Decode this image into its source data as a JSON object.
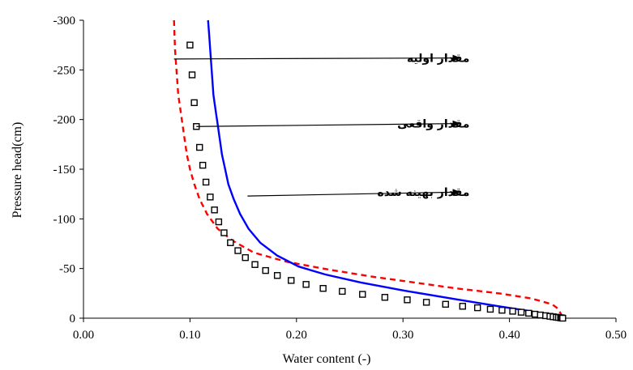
{
  "chart_data": {
    "type": "line",
    "xlabel": "Water content (-)",
    "ylabel": "Pressure head(cm)",
    "xlim": [
      0,
      0.5
    ],
    "ylim": [
      0,
      -300
    ],
    "x_ticks": [
      "0.00",
      "0.10",
      "0.20",
      "0.30",
      "0.40",
      "0.50"
    ],
    "y_ticks": [
      "0",
      "-50",
      "-100",
      "-150",
      "-200",
      "-250",
      "-300"
    ],
    "grid": false,
    "legend": "none",
    "series": [
      {
        "style": "dashed-line",
        "color": "#ff0000",
        "points": [
          [
            0.085,
            -300
          ],
          [
            0.0855,
            -285
          ],
          [
            0.086,
            -270
          ],
          [
            0.087,
            -255
          ],
          [
            0.088,
            -240
          ],
          [
            0.089,
            -225
          ],
          [
            0.091,
            -210
          ],
          [
            0.093,
            -195
          ],
          [
            0.095,
            -180
          ],
          [
            0.097,
            -165
          ],
          [
            0.1,
            -150
          ],
          [
            0.104,
            -135
          ],
          [
            0.109,
            -120
          ],
          [
            0.116,
            -105
          ],
          [
            0.126,
            -90
          ],
          [
            0.14,
            -78
          ],
          [
            0.16,
            -66
          ],
          [
            0.19,
            -57
          ],
          [
            0.23,
            -49
          ],
          [
            0.27,
            -42
          ],
          [
            0.31,
            -36
          ],
          [
            0.35,
            -30
          ],
          [
            0.39,
            -25
          ],
          [
            0.42,
            -20
          ],
          [
            0.44,
            -14
          ],
          [
            0.445,
            -10
          ],
          [
            0.448,
            -5
          ],
          [
            0.45,
            0
          ]
        ]
      },
      {
        "style": "solid-line",
        "color": "#0000ff",
        "points": [
          [
            0.117,
            -300
          ],
          [
            0.118,
            -285
          ],
          [
            0.119,
            -270
          ],
          [
            0.12,
            -255
          ],
          [
            0.121,
            -240
          ],
          [
            0.122,
            -225
          ],
          [
            0.124,
            -210
          ],
          [
            0.126,
            -195
          ],
          [
            0.128,
            -180
          ],
          [
            0.13,
            -165
          ],
          [
            0.133,
            -150
          ],
          [
            0.136,
            -135
          ],
          [
            0.141,
            -120
          ],
          [
            0.147,
            -105
          ],
          [
            0.155,
            -90
          ],
          [
            0.166,
            -76
          ],
          [
            0.182,
            -63
          ],
          [
            0.202,
            -52
          ],
          [
            0.227,
            -44
          ],
          [
            0.26,
            -36
          ],
          [
            0.3,
            -28
          ],
          [
            0.35,
            -19
          ],
          [
            0.39,
            -12
          ],
          [
            0.42,
            -7
          ],
          [
            0.44,
            -3
          ],
          [
            0.45,
            0
          ]
        ]
      },
      {
        "style": "open-square-markers",
        "color": "#000000",
        "points": [
          [
            0.1,
            -275
          ],
          [
            0.102,
            -245
          ],
          [
            0.104,
            -217
          ],
          [
            0.106,
            -193
          ],
          [
            0.109,
            -172
          ],
          [
            0.112,
            -154
          ],
          [
            0.115,
            -137
          ],
          [
            0.119,
            -122
          ],
          [
            0.123,
            -109
          ],
          [
            0.127,
            -97
          ],
          [
            0.132,
            -86
          ],
          [
            0.138,
            -76
          ],
          [
            0.145,
            -68
          ],
          [
            0.152,
            -61
          ],
          [
            0.161,
            -54
          ],
          [
            0.171,
            -48
          ],
          [
            0.182,
            -43
          ],
          [
            0.195,
            -38
          ],
          [
            0.209,
            -34
          ],
          [
            0.225,
            -30
          ],
          [
            0.243,
            -27
          ],
          [
            0.262,
            -24
          ],
          [
            0.283,
            -21
          ],
          [
            0.304,
            -18.5
          ],
          [
            0.322,
            -16
          ],
          [
            0.34,
            -14
          ],
          [
            0.356,
            -12
          ],
          [
            0.37,
            -10.5
          ],
          [
            0.382,
            -9
          ],
          [
            0.393,
            -8
          ],
          [
            0.403,
            -7
          ],
          [
            0.411,
            -6
          ],
          [
            0.418,
            -5
          ],
          [
            0.424,
            -4
          ],
          [
            0.429,
            -3.2
          ],
          [
            0.434,
            -2.5
          ],
          [
            0.438,
            -1.9
          ],
          [
            0.441,
            -1.4
          ],
          [
            0.444,
            -1.0
          ],
          [
            0.446,
            -0.7
          ],
          [
            0.448,
            -0.4
          ],
          [
            0.449,
            -0.2
          ],
          [
            0.45,
            0
          ]
        ]
      }
    ],
    "annotations": [
      {
        "text": "مقدار اولیه",
        "target": [
          0.085,
          -261
        ],
        "text_anchor": [
          0.355,
          -262
        ]
      },
      {
        "text": "مقدار واقعی",
        "target": [
          0.106,
          -193
        ],
        "text_anchor": [
          0.355,
          -196
        ]
      },
      {
        "text": "مقدار بهینه شده",
        "target": [
          0.154,
          -123
        ],
        "text_anchor": [
          0.355,
          -127
        ]
      }
    ]
  }
}
